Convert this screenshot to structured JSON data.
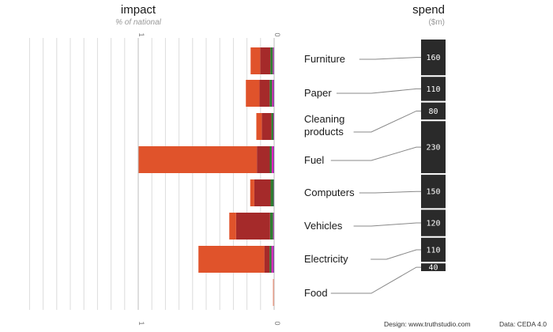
{
  "titles": {
    "impact": "impact",
    "impact_sub": "% of national",
    "spend": "spend",
    "spend_sub": "($m)"
  },
  "axis": {
    "impact_ticks": [
      "1",
      "0"
    ]
  },
  "footer": {
    "design": "Design: www.truthstudio.com",
    "data": "Data: CEDA 4.0"
  },
  "colors": {
    "background": "#ffffff",
    "grid": "#dcdcdc",
    "grid_major": "#bdbdbd",
    "spend_bar": "#2a2a2a",
    "leader": "#888888"
  },
  "chart_data": [
    {
      "type": "bar",
      "orientation": "horizontal",
      "direction": "right-to-left",
      "title": "impact",
      "subtitle": "% of national",
      "xlim": [
        0,
        1.02
      ],
      "categories": [
        "Furniture",
        "Paper",
        "Cleaning products",
        "Fuel",
        "Computers",
        "Vehicles",
        "Electricity",
        "Food"
      ],
      "stacked": true,
      "series": [
        {
          "color": "#7a4a9c",
          "values": [
            0.005,
            0.006,
            0.003,
            0.006,
            0.004,
            0.004,
            0.008,
            0.0
          ]
        },
        {
          "color": "#e020c0",
          "values": [
            0.005,
            0.009,
            0.003,
            0.012,
            0.0,
            0.004,
            0.012,
            0.0
          ]
        },
        {
          "color": "#2e7d32",
          "values": [
            0.018,
            0.018,
            0.015,
            0.014,
            0.022,
            0.022,
            0.014,
            0.0
          ]
        },
        {
          "color": "#a52a2a",
          "values": [
            0.075,
            0.075,
            0.07,
            0.095,
            0.12,
            0.25,
            0.038,
            0.0
          ]
        },
        {
          "color": "#e0532b",
          "values": [
            0.07,
            0.1,
            0.04,
            0.87,
            0.03,
            0.05,
            0.485,
            0.01
          ]
        }
      ]
    },
    {
      "type": "bar",
      "orientation": "vertical-stacked",
      "title": "spend",
      "subtitle": "($m)",
      "categories": [
        "Furniture",
        "Paper",
        "Cleaning products",
        "Fuel",
        "Computers",
        "Vehicles",
        "Electricity",
        "Food"
      ],
      "labels": [
        "Furniture",
        "Paper",
        "Cleaning\nproducts",
        "Fuel",
        "Computers",
        "Vehicles",
        "Electricity",
        "Food"
      ],
      "values": [
        160,
        110,
        80,
        230,
        150,
        120,
        110,
        40
      ]
    }
  ]
}
